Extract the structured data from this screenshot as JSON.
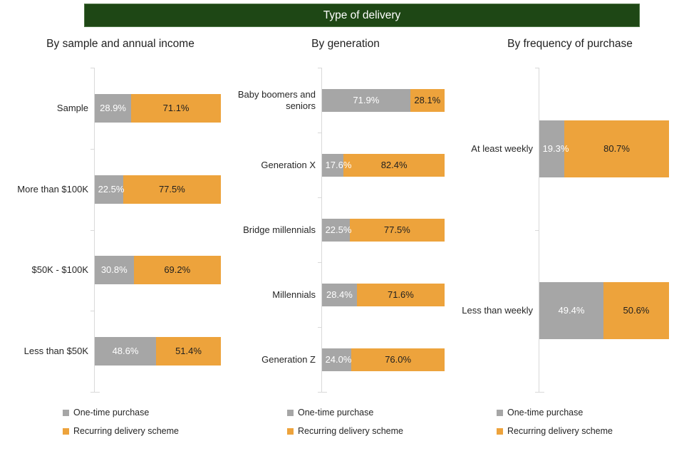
{
  "page": {
    "title": "Type of delivery"
  },
  "legend": {
    "items": [
      {
        "label": "One-time purchase",
        "color": "#a6a6a6"
      },
      {
        "label": "Recurring delivery scheme",
        "color": "#eda33c"
      }
    ]
  },
  "chart_data": [
    {
      "type": "bar",
      "orientation": "horizontal",
      "stacked": true,
      "title": "By sample and annual income",
      "xlim": [
        0,
        100
      ],
      "grid": false,
      "legend_position": "bottom",
      "categories": [
        "Sample",
        "More than $100K",
        "$50K - $100K",
        "Less than $50K"
      ],
      "series": [
        {
          "name": "One-time purchase",
          "color": "#a6a6a6",
          "values": [
            28.9,
            22.5,
            30.8,
            48.6
          ],
          "labels": [
            "28.9%",
            "22.5%",
            "30.8%",
            "48.6%"
          ]
        },
        {
          "name": "Recurring delivery scheme",
          "color": "#eda33c",
          "values": [
            71.1,
            77.5,
            69.2,
            51.4
          ],
          "labels": [
            "71.1%",
            "77.5%",
            "69.2%",
            "51.4%"
          ]
        }
      ]
    },
    {
      "type": "bar",
      "orientation": "horizontal",
      "stacked": true,
      "title": "By generation",
      "xlim": [
        0,
        100
      ],
      "grid": false,
      "legend_position": "bottom",
      "categories": [
        "Baby boomers and seniors",
        "Generation X",
        "Bridge millennials",
        "Millennials",
        "Generation Z"
      ],
      "series": [
        {
          "name": "One-time purchase",
          "color": "#a6a6a6",
          "values": [
            71.9,
            17.6,
            22.5,
            28.4,
            24.0
          ],
          "labels": [
            "71.9%",
            "17.6%",
            "22.5%",
            "28.4%",
            "24.0%"
          ]
        },
        {
          "name": "Recurring delivery scheme",
          "color": "#eda33c",
          "values": [
            28.1,
            82.4,
            77.5,
            71.6,
            76.0
          ],
          "labels": [
            "28.1%",
            "82.4%",
            "77.5%",
            "71.6%",
            "76.0%"
          ]
        }
      ]
    },
    {
      "type": "bar",
      "orientation": "horizontal",
      "stacked": true,
      "title": "By frequency of purchase",
      "xlim": [
        0,
        100
      ],
      "grid": false,
      "legend_position": "bottom",
      "categories": [
        "At least weekly",
        "Less than weekly"
      ],
      "series": [
        {
          "name": "One-time purchase",
          "color": "#a6a6a6",
          "values": [
            19.3,
            49.4
          ],
          "labels": [
            "19.3%",
            "49.4%"
          ]
        },
        {
          "name": "Recurring delivery scheme",
          "color": "#eda33c",
          "values": [
            80.7,
            50.6
          ],
          "labels": [
            "80.7%",
            "50.6%"
          ]
        }
      ]
    }
  ]
}
